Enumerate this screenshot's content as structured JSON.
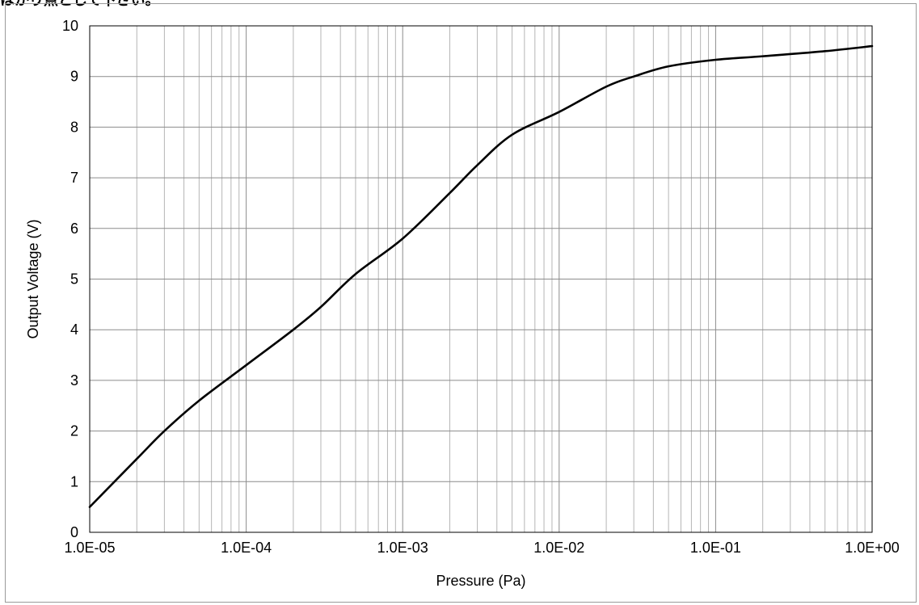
{
  "caption": "はかり点として下さい。",
  "chart_data": {
    "type": "line",
    "title": "",
    "xlabel": "Pressure (Pa)",
    "ylabel": "Output Voltage (V)",
    "x_scale": "log",
    "xlim": [
      1e-05,
      1
    ],
    "ylim": [
      0,
      10
    ],
    "x_tick_labels": [
      "1.0E-05",
      "1.0E-04",
      "1.0E-03",
      "1.0E-02",
      "1.0E-01",
      "1.0E+00"
    ],
    "y_tick_labels": [
      "0",
      "1",
      "2",
      "3",
      "4",
      "5",
      "6",
      "7",
      "8",
      "9",
      "10"
    ],
    "grid": true,
    "series": [
      {
        "color": "#000000",
        "x": [
          1e-05,
          2e-05,
          3e-05,
          5e-05,
          0.0001,
          0.0002,
          0.0003,
          0.0005,
          0.001,
          0.002,
          0.003,
          0.005,
          0.01,
          0.02,
          0.03,
          0.05,
          0.1,
          0.2,
          0.5,
          1
        ],
        "y": [
          0.5,
          1.45,
          2.0,
          2.6,
          3.3,
          4.0,
          4.45,
          5.1,
          5.8,
          6.7,
          7.25,
          7.85,
          8.3,
          8.8,
          9.0,
          9.2,
          9.33,
          9.4,
          9.5,
          9.6
        ]
      }
    ]
  }
}
